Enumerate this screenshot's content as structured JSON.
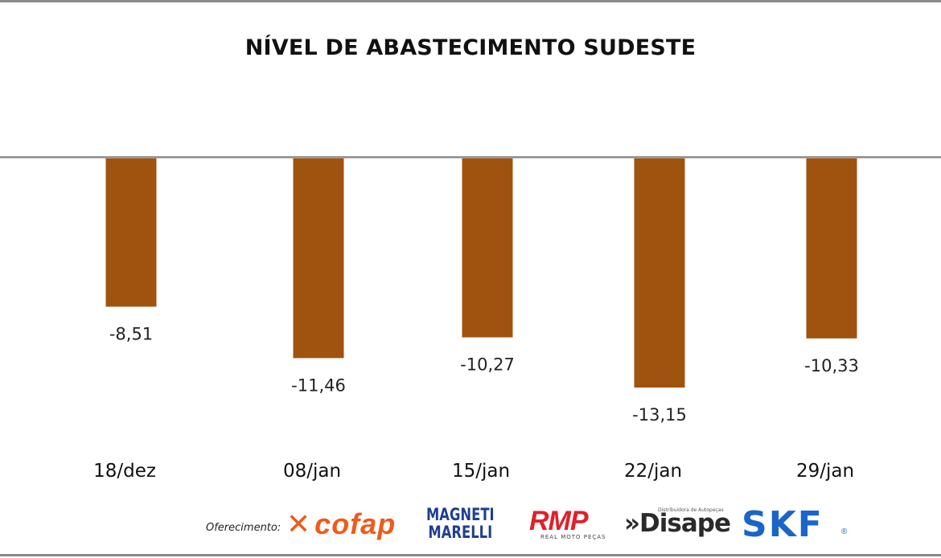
{
  "title": "NÍVEL DE ABASTECIMENTO SUDESTE",
  "chart_data": {
    "type": "bar",
    "title": "NÍVEL DE ABASTECIMENTO SUDESTE",
    "categories": [
      "18/dez",
      "08/jan",
      "15/jan",
      "22/jan",
      "29/jan"
    ],
    "values": [
      -8.51,
      -11.46,
      -10.27,
      -13.15,
      -10.33
    ],
    "value_labels": [
      "-8,51",
      "-11,46",
      "-10,27",
      "-13,15",
      "-10,33"
    ],
    "xlabel": "",
    "ylabel": "",
    "ylim": [
      -14,
      0
    ],
    "grid": false,
    "legend": "none",
    "bar_color": "#a0530e",
    "axis_color": "#8a8a8a"
  },
  "sponsors": {
    "label": "Oferecimento:",
    "cofap": "cofap",
    "marelli_line1": "MAGNETI",
    "marelli_line2": "MARELLI",
    "rmp": "RMP",
    "rmp_sub": "REAL MOTO PEÇAS",
    "disape": "»Disape",
    "disape_sub": "Distribuidora de Autopeças",
    "skf": "SKF",
    "skf_reg": "®"
  }
}
